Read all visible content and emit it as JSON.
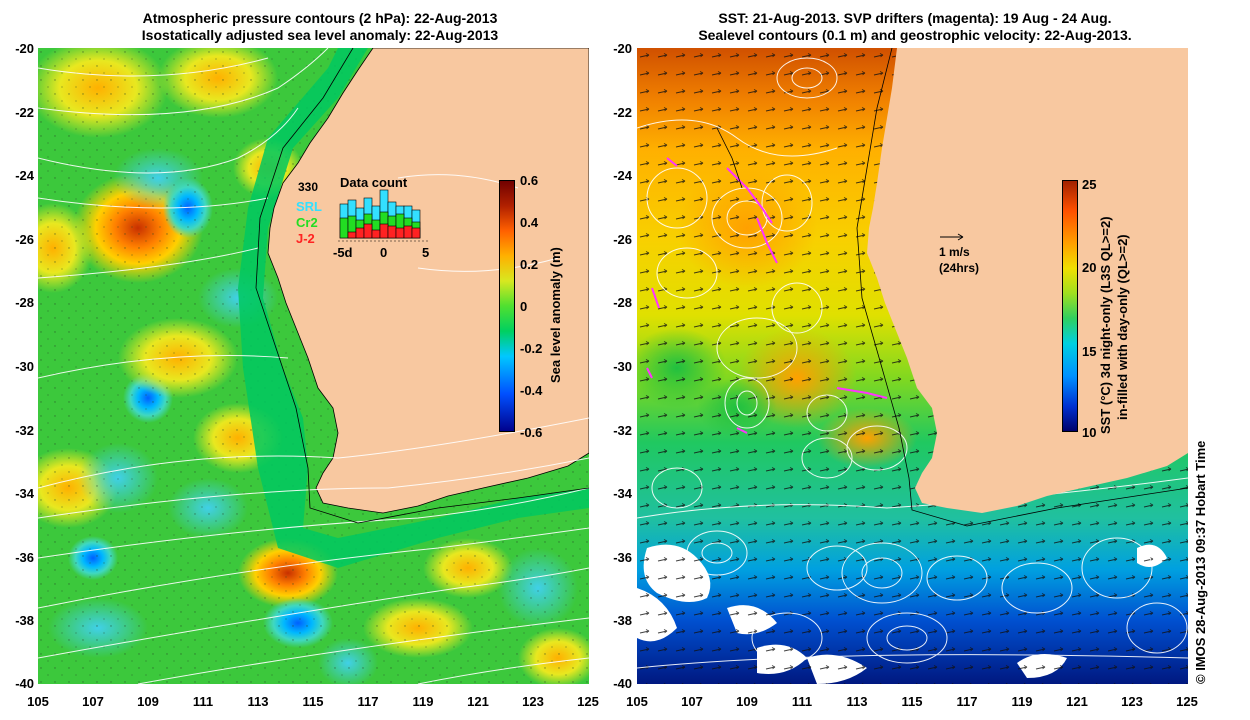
{
  "left_panel": {
    "title_line1": "Atmospheric pressure contours (2 hPa): 22-Aug-2013",
    "title_line2": "Isostatically adjusted sea level anomaly: 22-Aug-2013",
    "yticks": [
      "-20",
      "-22",
      "-24",
      "-26",
      "-28",
      "-30",
      "-32",
      "-34",
      "-36",
      "-38",
      "-40"
    ],
    "xticks": [
      "105",
      "107",
      "109",
      "111",
      "113",
      "115",
      "117",
      "119",
      "121",
      "123",
      "125"
    ],
    "colorbar": {
      "label": "Sea level anomaly (m)",
      "ticks": [
        "0.6",
        "0.4",
        "0.2",
        "0",
        "-0.2",
        "-0.4",
        "-0.6"
      ],
      "range": [
        -0.6,
        0.6
      ]
    },
    "inset": {
      "title": "Data count",
      "count": "330",
      "series": [
        "SRL",
        "Cr2",
        "J-2"
      ],
      "series_colors": [
        "#33e0ff",
        "#22dd22",
        "#ff2222"
      ],
      "xticks": [
        "-5d",
        "0",
        "5"
      ]
    }
  },
  "right_panel": {
    "title_line1": "SST: 21-Aug-2013. SVP drifters (magenta): 19 Aug - 24 Aug.",
    "title_line2": "Sealevel contours (0.1 m) and geostrophic velocity: 22-Aug-2013.",
    "yticks": [
      "-20",
      "-22",
      "-24",
      "-26",
      "-28",
      "-30",
      "-32",
      "-34",
      "-36",
      "-38",
      "-40"
    ],
    "xticks": [
      "105",
      "107",
      "109",
      "111",
      "113",
      "115",
      "117",
      "119",
      "121",
      "123",
      "125"
    ],
    "scale_arrow": {
      "line1": "1 m/s",
      "line2": "(24hrs)"
    },
    "colorbar": {
      "label_line1": "SST (°C)  3d night-only (L3S QL>=2)",
      "label_line2": "in-filled with day-only (QL>=2)",
      "ticks": [
        "25",
        "20",
        "15",
        "10"
      ],
      "range": [
        10,
        25
      ]
    }
  },
  "credit": "© IMOS 28-Aug-2013 09:37 Hobart Time",
  "colors": {
    "land": "#f8c8a0",
    "ssh_scale": [
      "#00008b",
      "#0050ff",
      "#00c8ff",
      "#00d060",
      "#50e030",
      "#d8e820",
      "#ffb000",
      "#ff6000",
      "#b02000",
      "#700000"
    ],
    "sst_scale": [
      "#00006a",
      "#0030d0",
      "#0090ff",
      "#00d0e0",
      "#30d060",
      "#a0e020",
      "#f0e000",
      "#ffa000",
      "#ff5000",
      "#a02000"
    ],
    "drifter": "#ff33ff"
  }
}
